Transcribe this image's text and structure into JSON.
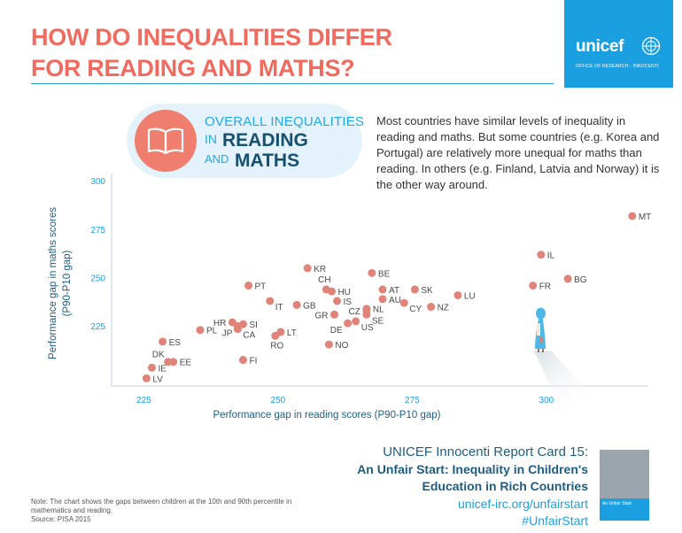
{
  "header": {
    "title_line1": "HOW DO INEQUALITIES DIFFER",
    "title_line2": "FOR READING AND MATHS?",
    "logo_text": "unicef",
    "logo_subtitle": "OFFICE OF RESEARCH - INNOCENTI"
  },
  "badge": {
    "line1": "OVERALL INEQUALITIES",
    "in": "IN",
    "reading": "READING",
    "and": "AND",
    "maths": "MATHS"
  },
  "description": "Most countries have similar levels of inequality in reading and maths. But some countries (e.g. Korea and Portugal) are relatively more unequal for maths than reading. In others (e.g. Finland, Latvia and Norway) it is the other way around.",
  "chart_data": {
    "type": "scatter",
    "title": "",
    "xlabel": "Performance gap in reading scores (P90-P10 gap)",
    "ylabel_line1": "Performance gap in maths scores",
    "ylabel_line2": "(P90-P10 gap)",
    "xlim": [
      219,
      319
    ],
    "ylim": [
      194,
      304
    ],
    "x_ticks": [
      "225",
      "250",
      "275",
      "300"
    ],
    "y_ticks": [
      "225",
      "250",
      "275",
      "300"
    ],
    "grid": false,
    "point_color": "#e0847a",
    "points": [
      {
        "label": "MT",
        "x": 316.0,
        "y": 282.0
      },
      {
        "label": "IL",
        "x": 299.0,
        "y": 262.0
      },
      {
        "label": "BG",
        "x": 304.0,
        "y": 249.5
      },
      {
        "label": "FR",
        "x": 297.5,
        "y": 246.0
      },
      {
        "label": "KR",
        "x": 255.5,
        "y": 255.0
      },
      {
        "label": "BE",
        "x": 267.5,
        "y": 252.5
      },
      {
        "label": "PT",
        "x": 244.5,
        "y": 246.0
      },
      {
        "label": "CH",
        "x": 259.0,
        "y": 244.0
      },
      {
        "label": "HU",
        "x": 260.0,
        "y": 243.0
      },
      {
        "label": "AT",
        "x": 269.5,
        "y": 244.0
      },
      {
        "label": "SK",
        "x": 275.5,
        "y": 244.0
      },
      {
        "label": "LU",
        "x": 283.5,
        "y": 241.0
      },
      {
        "label": "AU",
        "x": 269.5,
        "y": 239.0
      },
      {
        "label": "IS",
        "x": 261.0,
        "y": 238.0
      },
      {
        "label": "IT",
        "x": 248.5,
        "y": 238.0
      },
      {
        "label": "GB",
        "x": 253.5,
        "y": 236.0
      },
      {
        "label": "CY",
        "x": 273.5,
        "y": 237.0
      },
      {
        "label": "NZ",
        "x": 278.5,
        "y": 235.0
      },
      {
        "label": "NL",
        "x": 266.5,
        "y": 234.0
      },
      {
        "label": "CZ",
        "x": 266.5,
        "y": 233.0
      },
      {
        "label": "SE",
        "x": 266.5,
        "y": 231.0
      },
      {
        "label": "GR",
        "x": 260.5,
        "y": 231.0
      },
      {
        "label": "US",
        "x": 264.5,
        "y": 227.5
      },
      {
        "label": "DE",
        "x": 263.0,
        "y": 226.5
      },
      {
        "label": "HR",
        "x": 241.5,
        "y": 227.0
      },
      {
        "label": "SI",
        "x": 243.5,
        "y": 226.0
      },
      {
        "label": "JP",
        "x": 242.5,
        "y": 225.0
      },
      {
        "label": "CA",
        "x": 242.5,
        "y": 223.5
      },
      {
        "label": "PL",
        "x": 235.5,
        "y": 223.0
      },
      {
        "label": "LT",
        "x": 250.5,
        "y": 222.0
      },
      {
        "label": "RO",
        "x": 249.5,
        "y": 220.0
      },
      {
        "label": "NO",
        "x": 259.5,
        "y": 215.5
      },
      {
        "label": "ES",
        "x": 228.5,
        "y": 217.0
      },
      {
        "label": "FI",
        "x": 243.5,
        "y": 207.5
      },
      {
        "label": "DK",
        "x": 229.5,
        "y": 206.5
      },
      {
        "label": "EE",
        "x": 230.5,
        "y": 206.5
      },
      {
        "label": "IE",
        "x": 226.5,
        "y": 203.5
      },
      {
        "label": "LV",
        "x": 225.5,
        "y": 198.0
      }
    ]
  },
  "note": {
    "line1": "Note: The chart shows the gaps between children at the 10th and 90th percentile in",
    "line2": "mathematics and reading.",
    "line3": "Source: PISA 2015"
  },
  "report": {
    "line1": "UNICEF Innocenti Report Card 15:",
    "line2": "An Unfair Start: Inequality in Children's",
    "line3": "Education in Rich Countries",
    "url": "unicef-irc.org/unfairstart",
    "hashtag": "#UnfairStart",
    "cover_title": "An Unfair Start"
  }
}
